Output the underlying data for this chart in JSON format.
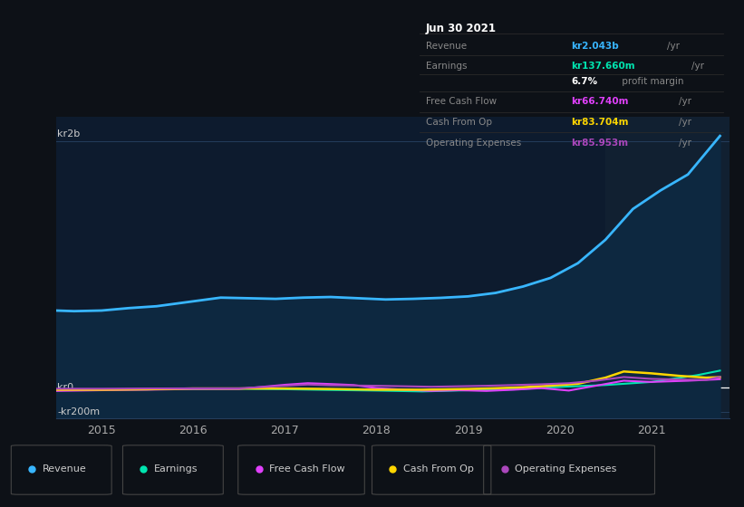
{
  "bg_color": "#0d1117",
  "plot_bg_color": "#0d1b2e",
  "ylim": [
    -250,
    2200
  ],
  "xlim": [
    2014.5,
    2021.85
  ],
  "xticks": [
    2015,
    2016,
    2017,
    2018,
    2019,
    2020,
    2021
  ],
  "shaded_region_start": 2020.5,
  "revenue_x": [
    2014.5,
    2014.7,
    2015.0,
    2015.3,
    2015.6,
    2016.0,
    2016.3,
    2016.6,
    2016.9,
    2017.2,
    2017.5,
    2017.8,
    2018.1,
    2018.4,
    2018.7,
    2019.0,
    2019.3,
    2019.6,
    2019.9,
    2020.2,
    2020.5,
    2020.8,
    2021.1,
    2021.4,
    2021.75
  ],
  "revenue_y": [
    625,
    620,
    625,
    645,
    660,
    700,
    730,
    725,
    720,
    730,
    735,
    725,
    715,
    720,
    728,
    740,
    768,
    820,
    890,
    1010,
    1200,
    1450,
    1600,
    1730,
    2043
  ],
  "revenue_color": "#38b6ff",
  "revenue_fill": "#0d2840",
  "earnings_x": [
    2014.5,
    2015.0,
    2015.5,
    2016.0,
    2016.5,
    2017.0,
    2017.5,
    2018.0,
    2018.5,
    2019.0,
    2019.5,
    2020.0,
    2020.5,
    2021.0,
    2021.5,
    2021.75
  ],
  "earnings_y": [
    -18,
    -16,
    -15,
    -12,
    -10,
    -14,
    -20,
    -25,
    -32,
    -22,
    -15,
    5,
    20,
    45,
    100,
    137
  ],
  "earnings_color": "#00e5b0",
  "fcf_x": [
    2014.5,
    2015.0,
    2015.5,
    2016.0,
    2016.5,
    2017.0,
    2017.25,
    2017.5,
    2017.75,
    2018.0,
    2018.3,
    2018.6,
    2018.9,
    2019.2,
    2019.5,
    2019.8,
    2020.1,
    2020.4,
    2020.7,
    2021.0,
    2021.4,
    2021.75
  ],
  "fcf_y": [
    -28,
    -22,
    -18,
    -12,
    -12,
    22,
    35,
    28,
    20,
    -5,
    -18,
    -28,
    -22,
    -28,
    -18,
    -5,
    -25,
    15,
    55,
    45,
    55,
    67
  ],
  "fcf_color": "#e040fb",
  "cashop_x": [
    2014.5,
    2015.0,
    2015.5,
    2016.0,
    2016.5,
    2017.0,
    2017.5,
    2018.0,
    2018.5,
    2019.0,
    2019.3,
    2019.6,
    2019.9,
    2020.2,
    2020.5,
    2020.7,
    2021.0,
    2021.3,
    2021.6,
    2021.75
  ],
  "cashop_y": [
    -18,
    -18,
    -14,
    -8,
    -8,
    -8,
    -12,
    -18,
    -18,
    -12,
    -6,
    2,
    15,
    30,
    80,
    130,
    115,
    95,
    80,
    84
  ],
  "cashop_color": "#ffd600",
  "opex_x": [
    2014.5,
    2015.0,
    2015.5,
    2016.0,
    2016.5,
    2017.0,
    2017.25,
    2017.5,
    2017.75,
    2018.0,
    2018.3,
    2018.6,
    2018.9,
    2019.2,
    2019.5,
    2019.8,
    2020.1,
    2020.4,
    2020.7,
    2021.0,
    2021.3,
    2021.6,
    2021.75
  ],
  "opex_y": [
    -10,
    -10,
    -8,
    -7,
    -7,
    14,
    24,
    18,
    16,
    14,
    10,
    6,
    10,
    14,
    20,
    26,
    35,
    55,
    85,
    70,
    65,
    62,
    86
  ],
  "opex_color": "#ab47bc",
  "title_box_date": "Jun 30 2021",
  "tooltip_rows": [
    {
      "label": "Revenue",
      "value": "kr2.043b",
      "unit": "/yr",
      "color": "#38b6ff"
    },
    {
      "label": "Earnings",
      "value": "kr137.660m",
      "unit": "/yr",
      "color": "#00e5b0"
    },
    {
      "label": "",
      "value": "6.7%",
      "unit": " profit margin",
      "color": "#ffffff"
    },
    {
      "label": "Free Cash Flow",
      "value": "kr66.740m",
      "unit": "/yr",
      "color": "#e040fb"
    },
    {
      "label": "Cash From Op",
      "value": "kr83.704m",
      "unit": "/yr",
      "color": "#ffd600"
    },
    {
      "label": "Operating Expenses",
      "value": "kr85.953m",
      "unit": "/yr",
      "color": "#ab47bc"
    }
  ],
  "legend_items": [
    {
      "label": "Revenue",
      "color": "#38b6ff"
    },
    {
      "label": "Earnings",
      "color": "#00e5b0"
    },
    {
      "label": "Free Cash Flow",
      "color": "#e040fb"
    },
    {
      "label": "Cash From Op",
      "color": "#ffd600"
    },
    {
      "label": "Operating Expenses",
      "color": "#ab47bc"
    }
  ]
}
